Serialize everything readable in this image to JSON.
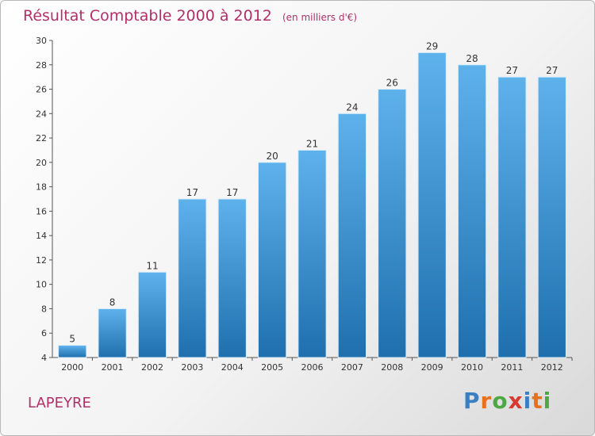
{
  "header": {
    "title": "Résultat Comptable 2000 à 2012",
    "subtitle": "(en milliers d'€)"
  },
  "footer": {
    "commune": "LAPEYRE",
    "logo_text": "Proxiti"
  },
  "colors": {
    "title": "#b0306a",
    "bar_top": "#5eb2ec",
    "bar_bottom": "#1f6fae",
    "logo": [
      "#3a7fc4",
      "#e8721c",
      "#4da843",
      "#d83a2f",
      "#3a7fc4",
      "#e8721c",
      "#4da843"
    ]
  },
  "chart_data": {
    "type": "bar",
    "title": "Résultat Comptable 2000 à 2012",
    "subtitle": "(en milliers d'€)",
    "xlabel": "",
    "ylabel": "",
    "categories": [
      "2000",
      "2001",
      "2002",
      "2003",
      "2004",
      "2005",
      "2006",
      "2007",
      "2008",
      "2009",
      "2010",
      "2011",
      "2012"
    ],
    "values": [
      5,
      8,
      11,
      17,
      17,
      20,
      21,
      24,
      26,
      29,
      28,
      27,
      27
    ],
    "ylim": [
      4,
      30
    ],
    "yticks": [
      4,
      6,
      8,
      10,
      12,
      14,
      16,
      18,
      20,
      22,
      24,
      26,
      28,
      30
    ],
    "grid": false,
    "data_labels": true
  }
}
